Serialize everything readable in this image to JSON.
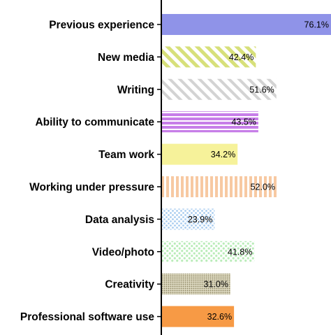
{
  "chart_data": {
    "type": "bar",
    "orientation": "horizontal",
    "title": "",
    "xlabel": "",
    "ylabel": "",
    "xlim": [
      0,
      100
    ],
    "grid": false,
    "legend": "none",
    "categories": [
      "Previous experience",
      "New media",
      "Writing",
      "Ability to communicate",
      "Team work",
      "Working under pressure",
      "Data analysis",
      "Video/photo",
      "Creativity",
      "Professional software use"
    ],
    "values": [
      76.1,
      42.4,
      51.6,
      43.5,
      34.2,
      52.0,
      23.9,
      41.8,
      31.0,
      32.6
    ],
    "value_labels": [
      "76.1%",
      "42.4%",
      "51.6%",
      "43.5%",
      "34.2%",
      "52.0%",
      "23.9%",
      "41.8%",
      "31.0%",
      "32.6%"
    ],
    "bar_styles": [
      {
        "pattern": "solid",
        "color": "#8f93e8"
      },
      {
        "pattern": "diagonal-stripes",
        "color": "#d7e07a"
      },
      {
        "pattern": "diagonal-stripes",
        "color": "#d3d3d3"
      },
      {
        "pattern": "horizontal-stripes",
        "color": "#c77ee8"
      },
      {
        "pattern": "solid",
        "color": "#f6f29a"
      },
      {
        "pattern": "vertical-stripes",
        "color": "#f7c9a2"
      },
      {
        "pattern": "dots",
        "color": "#a7ccef"
      },
      {
        "pattern": "dots",
        "color": "#b9ecb8"
      },
      {
        "pattern": "fine-dots",
        "color": "#b9b38f"
      },
      {
        "pattern": "solid",
        "color": "#f79a45"
      }
    ]
  }
}
